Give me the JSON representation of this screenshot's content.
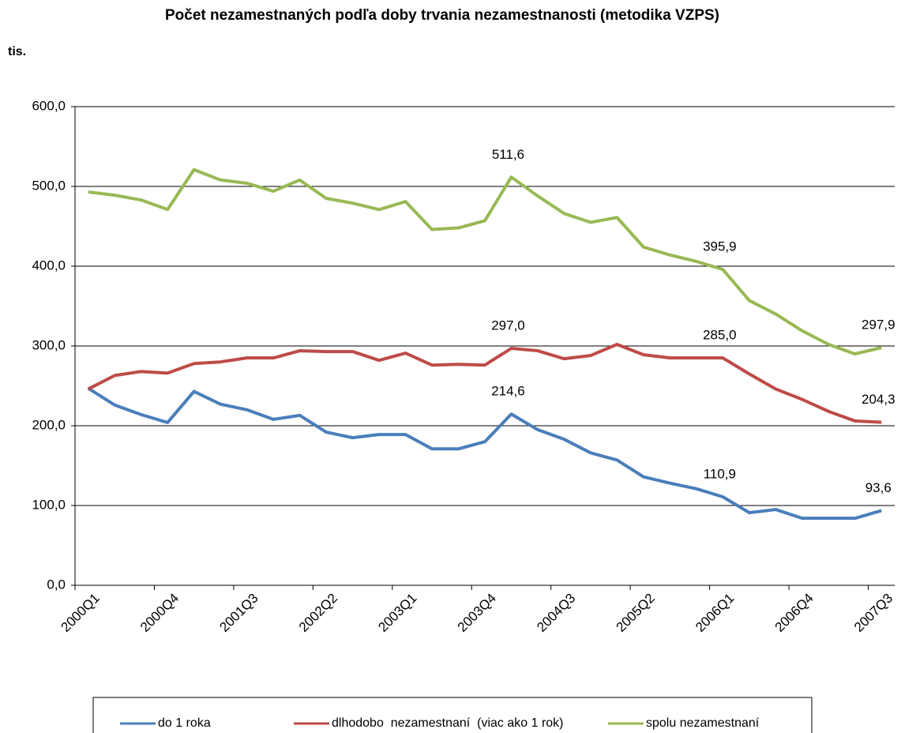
{
  "chart_data": {
    "type": "line",
    "title": "Počet nezamestnaných podľa doby trvania nezamestnanosti (metodika VZPS)",
    "y_label": "tis.",
    "categories": [
      "2000Q1",
      null,
      null,
      "2000Q4",
      null,
      null,
      "2001Q3",
      null,
      null,
      "2002Q2",
      null,
      null,
      "2003Q1",
      null,
      null,
      "2003Q4",
      null,
      null,
      "2004Q3",
      null,
      null,
      "2005Q2",
      null,
      null,
      "2006Q1",
      null,
      null,
      "2006Q4",
      null,
      null,
      "2007Q3"
    ],
    "ylim": [
      0,
      600
    ],
    "yticks": [
      {
        "value": 0,
        "label": "0,0"
      },
      {
        "value": 100,
        "label": "100,0"
      },
      {
        "value": 200,
        "label": "200,0"
      },
      {
        "value": 300,
        "label": "300,0"
      },
      {
        "value": 400,
        "label": "400,0"
      },
      {
        "value": 500,
        "label": "500,0"
      },
      {
        "value": 600,
        "label": "600,0"
      }
    ],
    "grid": true,
    "legend": "bottom",
    "series": [
      {
        "name": "do 1 roka",
        "color": "#4a7ebb",
        "values": [
          247,
          226,
          214,
          204,
          243,
          227,
          220,
          208,
          213,
          192,
          185,
          189,
          189,
          171,
          171,
          180,
          214.6,
          195,
          183,
          166,
          157,
          136,
          128,
          121,
          110.9,
          91,
          95,
          84,
          84,
          84,
          93.6
        ],
        "value_labels": [
          null,
          null,
          null,
          null,
          null,
          null,
          null,
          null,
          null,
          null,
          null,
          null,
          null,
          null,
          null,
          null,
          "214,6",
          null,
          null,
          null,
          null,
          null,
          null,
          null,
          "110,9",
          null,
          null,
          null,
          null,
          null,
          "93,6"
        ]
      },
      {
        "name": "dlhodobo  nezamestnaní  (viac ako 1 rok)",
        "color": "#be4b48",
        "values": [
          246,
          263,
          268,
          266,
          278,
          280,
          285,
          285,
          294,
          293,
          293,
          282,
          291,
          276,
          277,
          276,
          297.0,
          294,
          284,
          288,
          302,
          289,
          285,
          285,
          285.0,
          265,
          246,
          233,
          218,
          206,
          204.3
        ],
        "value_labels": [
          null,
          null,
          null,
          null,
          null,
          null,
          null,
          null,
          null,
          null,
          null,
          null,
          null,
          null,
          null,
          null,
          "297,0",
          null,
          null,
          null,
          null,
          null,
          null,
          null,
          "285,0",
          null,
          null,
          null,
          null,
          null,
          "204,3"
        ]
      },
      {
        "name": "spolu nezamestnaní",
        "color": "#98b954",
        "values": [
          493,
          489,
          483,
          471,
          521,
          508,
          504,
          494,
          508,
          485,
          479,
          471,
          481,
          446,
          448,
          457,
          511.6,
          488,
          466,
          455,
          461,
          424,
          414,
          406,
          395.9,
          357,
          340,
          319,
          302,
          290,
          297.9
        ],
        "value_labels": [
          null,
          null,
          null,
          null,
          null,
          null,
          null,
          null,
          null,
          null,
          null,
          null,
          null,
          null,
          null,
          null,
          "511,6",
          null,
          null,
          null,
          null,
          null,
          null,
          null,
          "395,9",
          null,
          null,
          null,
          null,
          null,
          "297,9"
        ]
      }
    ]
  }
}
